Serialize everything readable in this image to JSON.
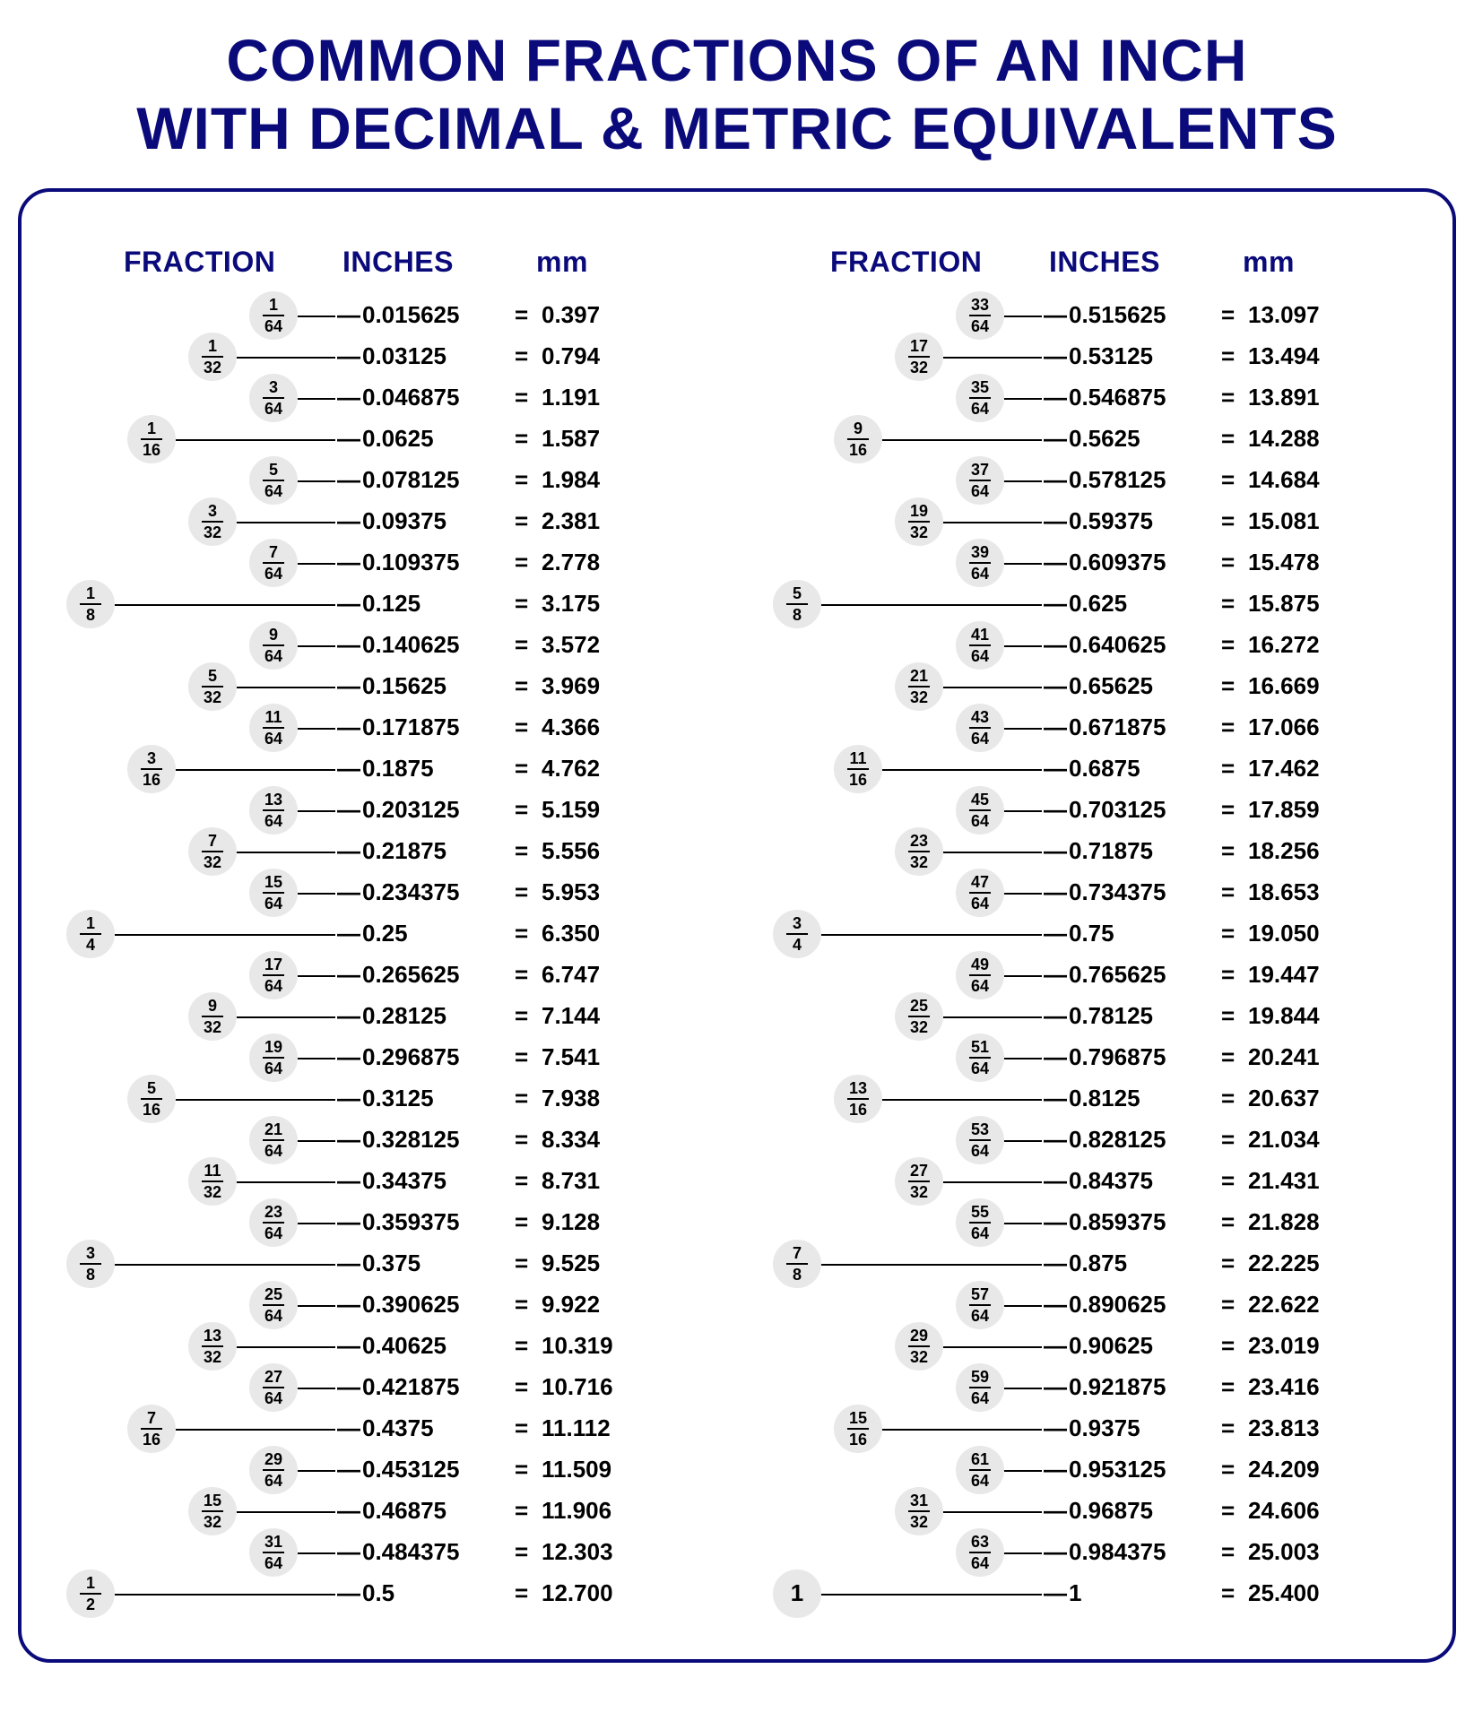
{
  "title_line1": "COMMON FRACTIONS OF AN INCH",
  "title_line2": "WITH DECIMAL & METRIC EQUIVALENTS",
  "colors": {
    "heading": "#0a0a7a",
    "border": "#0a0a7a",
    "bubble_bg": "#e8e8e8",
    "text": "#000000",
    "background": "#ffffff"
  },
  "headers": {
    "fraction": "FRACTION",
    "inches": "INCHES",
    "mm": "mm"
  },
  "left": [
    {
      "fracs": [
        {
          "n": "1",
          "d": "64",
          "lvl": 3
        }
      ],
      "inches": "0.015625",
      "mm": "0.397"
    },
    {
      "fracs": [
        {
          "n": "1",
          "d": "32",
          "lvl": 2
        }
      ],
      "inches": "0.03125",
      "mm": "0.794"
    },
    {
      "fracs": [
        {
          "n": "3",
          "d": "64",
          "lvl": 3
        }
      ],
      "inches": "0.046875",
      "mm": "1.191"
    },
    {
      "fracs": [
        {
          "n": "1",
          "d": "16",
          "lvl": 1
        }
      ],
      "inches": "0.0625",
      "mm": "1.587"
    },
    {
      "fracs": [
        {
          "n": "5",
          "d": "64",
          "lvl": 3
        }
      ],
      "inches": "0.078125",
      "mm": "1.984"
    },
    {
      "fracs": [
        {
          "n": "3",
          "d": "32",
          "lvl": 2
        }
      ],
      "inches": "0.09375",
      "mm": "2.381"
    },
    {
      "fracs": [
        {
          "n": "7",
          "d": "64",
          "lvl": 3
        }
      ],
      "inches": "0.109375",
      "mm": "2.778"
    },
    {
      "fracs": [
        {
          "n": "1",
          "d": "8",
          "lvl": 0
        }
      ],
      "inches": "0.125",
      "mm": "3.175"
    },
    {
      "fracs": [
        {
          "n": "9",
          "d": "64",
          "lvl": 3
        }
      ],
      "inches": "0.140625",
      "mm": "3.572"
    },
    {
      "fracs": [
        {
          "n": "5",
          "d": "32",
          "lvl": 2
        }
      ],
      "inches": "0.15625",
      "mm": "3.969"
    },
    {
      "fracs": [
        {
          "n": "11",
          "d": "64",
          "lvl": 3
        }
      ],
      "inches": "0.171875",
      "mm": "4.366"
    },
    {
      "fracs": [
        {
          "n": "3",
          "d": "16",
          "lvl": 1
        }
      ],
      "inches": "0.1875",
      "mm": "4.762"
    },
    {
      "fracs": [
        {
          "n": "13",
          "d": "64",
          "lvl": 3
        }
      ],
      "inches": "0.203125",
      "mm": "5.159"
    },
    {
      "fracs": [
        {
          "n": "7",
          "d": "32",
          "lvl": 2
        }
      ],
      "inches": "0.21875",
      "mm": "5.556"
    },
    {
      "fracs": [
        {
          "n": "15",
          "d": "64",
          "lvl": 3
        }
      ],
      "inches": "0.234375",
      "mm": "5.953"
    },
    {
      "fracs": [
        {
          "n": "1",
          "d": "4",
          "lvl": 0
        }
      ],
      "inches": "0.25",
      "mm": "6.350"
    },
    {
      "fracs": [
        {
          "n": "17",
          "d": "64",
          "lvl": 3
        }
      ],
      "inches": "0.265625",
      "mm": "6.747"
    },
    {
      "fracs": [
        {
          "n": "9",
          "d": "32",
          "lvl": 2
        }
      ],
      "inches": "0.28125",
      "mm": "7.144"
    },
    {
      "fracs": [
        {
          "n": "19",
          "d": "64",
          "lvl": 3
        }
      ],
      "inches": "0.296875",
      "mm": "7.541"
    },
    {
      "fracs": [
        {
          "n": "5",
          "d": "16",
          "lvl": 1
        }
      ],
      "inches": "0.3125",
      "mm": "7.938"
    },
    {
      "fracs": [
        {
          "n": "21",
          "d": "64",
          "lvl": 3
        }
      ],
      "inches": "0.328125",
      "mm": "8.334"
    },
    {
      "fracs": [
        {
          "n": "11",
          "d": "32",
          "lvl": 2
        }
      ],
      "inches": "0.34375",
      "mm": "8.731"
    },
    {
      "fracs": [
        {
          "n": "23",
          "d": "64",
          "lvl": 3
        }
      ],
      "inches": "0.359375",
      "mm": "9.128"
    },
    {
      "fracs": [
        {
          "n": "3",
          "d": "8",
          "lvl": 0
        }
      ],
      "inches": "0.375",
      "mm": "9.525"
    },
    {
      "fracs": [
        {
          "n": "25",
          "d": "64",
          "lvl": 3
        }
      ],
      "inches": "0.390625",
      "mm": "9.922"
    },
    {
      "fracs": [
        {
          "n": "13",
          "d": "32",
          "lvl": 2
        }
      ],
      "inches": "0.40625",
      "mm": "10.319"
    },
    {
      "fracs": [
        {
          "n": "27",
          "d": "64",
          "lvl": 3
        }
      ],
      "inches": "0.421875",
      "mm": "10.716"
    },
    {
      "fracs": [
        {
          "n": "7",
          "d": "16",
          "lvl": 1
        }
      ],
      "inches": "0.4375",
      "mm": "11.112"
    },
    {
      "fracs": [
        {
          "n": "29",
          "d": "64",
          "lvl": 3
        }
      ],
      "inches": "0.453125",
      "mm": "11.509"
    },
    {
      "fracs": [
        {
          "n": "15",
          "d": "32",
          "lvl": 2
        }
      ],
      "inches": "0.46875",
      "mm": "11.906"
    },
    {
      "fracs": [
        {
          "n": "31",
          "d": "64",
          "lvl": 3
        }
      ],
      "inches": "0.484375",
      "mm": "12.303"
    },
    {
      "fracs": [
        {
          "n": "1",
          "d": "2",
          "lvl": 0
        }
      ],
      "inches": "0.5",
      "mm": "12.700"
    }
  ],
  "right": [
    {
      "fracs": [
        {
          "n": "33",
          "d": "64",
          "lvl": 3
        }
      ],
      "inches": "0.515625",
      "mm": "13.097"
    },
    {
      "fracs": [
        {
          "n": "17",
          "d": "32",
          "lvl": 2
        }
      ],
      "inches": "0.53125",
      "mm": "13.494"
    },
    {
      "fracs": [
        {
          "n": "35",
          "d": "64",
          "lvl": 3
        }
      ],
      "inches": "0.546875",
      "mm": "13.891"
    },
    {
      "fracs": [
        {
          "n": "9",
          "d": "16",
          "lvl": 1
        }
      ],
      "inches": "0.5625",
      "mm": "14.288"
    },
    {
      "fracs": [
        {
          "n": "37",
          "d": "64",
          "lvl": 3
        }
      ],
      "inches": "0.578125",
      "mm": "14.684"
    },
    {
      "fracs": [
        {
          "n": "19",
          "d": "32",
          "lvl": 2
        }
      ],
      "inches": "0.59375",
      "mm": "15.081"
    },
    {
      "fracs": [
        {
          "n": "39",
          "d": "64",
          "lvl": 3
        }
      ],
      "inches": "0.609375",
      "mm": "15.478"
    },
    {
      "fracs": [
        {
          "n": "5",
          "d": "8",
          "lvl": 0
        }
      ],
      "inches": "0.625",
      "mm": "15.875"
    },
    {
      "fracs": [
        {
          "n": "41",
          "d": "64",
          "lvl": 3
        }
      ],
      "inches": "0.640625",
      "mm": "16.272"
    },
    {
      "fracs": [
        {
          "n": "21",
          "d": "32",
          "lvl": 2
        }
      ],
      "inches": "0.65625",
      "mm": "16.669"
    },
    {
      "fracs": [
        {
          "n": "43",
          "d": "64",
          "lvl": 3
        }
      ],
      "inches": "0.671875",
      "mm": "17.066"
    },
    {
      "fracs": [
        {
          "n": "11",
          "d": "16",
          "lvl": 1
        }
      ],
      "inches": "0.6875",
      "mm": "17.462"
    },
    {
      "fracs": [
        {
          "n": "45",
          "d": "64",
          "lvl": 3
        }
      ],
      "inches": "0.703125",
      "mm": "17.859"
    },
    {
      "fracs": [
        {
          "n": "23",
          "d": "32",
          "lvl": 2
        }
      ],
      "inches": "0.71875",
      "mm": "18.256"
    },
    {
      "fracs": [
        {
          "n": "47",
          "d": "64",
          "lvl": 3
        }
      ],
      "inches": "0.734375",
      "mm": "18.653"
    },
    {
      "fracs": [
        {
          "n": "3",
          "d": "4",
          "lvl": 0
        }
      ],
      "inches": "0.75",
      "mm": "19.050"
    },
    {
      "fracs": [
        {
          "n": "49",
          "d": "64",
          "lvl": 3
        }
      ],
      "inches": "0.765625",
      "mm": "19.447"
    },
    {
      "fracs": [
        {
          "n": "25",
          "d": "32",
          "lvl": 2
        }
      ],
      "inches": "0.78125",
      "mm": "19.844"
    },
    {
      "fracs": [
        {
          "n": "51",
          "d": "64",
          "lvl": 3
        }
      ],
      "inches": "0.796875",
      "mm": "20.241"
    },
    {
      "fracs": [
        {
          "n": "13",
          "d": "16",
          "lvl": 1
        }
      ],
      "inches": "0.8125",
      "mm": "20.637"
    },
    {
      "fracs": [
        {
          "n": "53",
          "d": "64",
          "lvl": 3
        }
      ],
      "inches": "0.828125",
      "mm": "21.034"
    },
    {
      "fracs": [
        {
          "n": "27",
          "d": "32",
          "lvl": 2
        }
      ],
      "inches": "0.84375",
      "mm": "21.431"
    },
    {
      "fracs": [
        {
          "n": "55",
          "d": "64",
          "lvl": 3
        }
      ],
      "inches": "0.859375",
      "mm": "21.828"
    },
    {
      "fracs": [
        {
          "n": "7",
          "d": "8",
          "lvl": 0
        }
      ],
      "inches": "0.875",
      "mm": "22.225"
    },
    {
      "fracs": [
        {
          "n": "57",
          "d": "64",
          "lvl": 3
        }
      ],
      "inches": "0.890625",
      "mm": "22.622"
    },
    {
      "fracs": [
        {
          "n": "29",
          "d": "32",
          "lvl": 2
        }
      ],
      "inches": "0.90625",
      "mm": "23.019"
    },
    {
      "fracs": [
        {
          "n": "59",
          "d": "64",
          "lvl": 3
        }
      ],
      "inches": "0.921875",
      "mm": "23.416"
    },
    {
      "fracs": [
        {
          "n": "15",
          "d": "16",
          "lvl": 1
        }
      ],
      "inches": "0.9375",
      "mm": "23.813"
    },
    {
      "fracs": [
        {
          "n": "61",
          "d": "64",
          "lvl": 3
        }
      ],
      "inches": "0.953125",
      "mm": "24.209"
    },
    {
      "fracs": [
        {
          "n": "31",
          "d": "32",
          "lvl": 2
        }
      ],
      "inches": "0.96875",
      "mm": "24.606"
    },
    {
      "fracs": [
        {
          "n": "63",
          "d": "64",
          "lvl": 3
        }
      ],
      "inches": "0.984375",
      "mm": "25.003"
    },
    {
      "fracs": [
        {
          "whole": "1",
          "lvl": 0
        }
      ],
      "inches": "1",
      "mm": "25.400"
    }
  ]
}
